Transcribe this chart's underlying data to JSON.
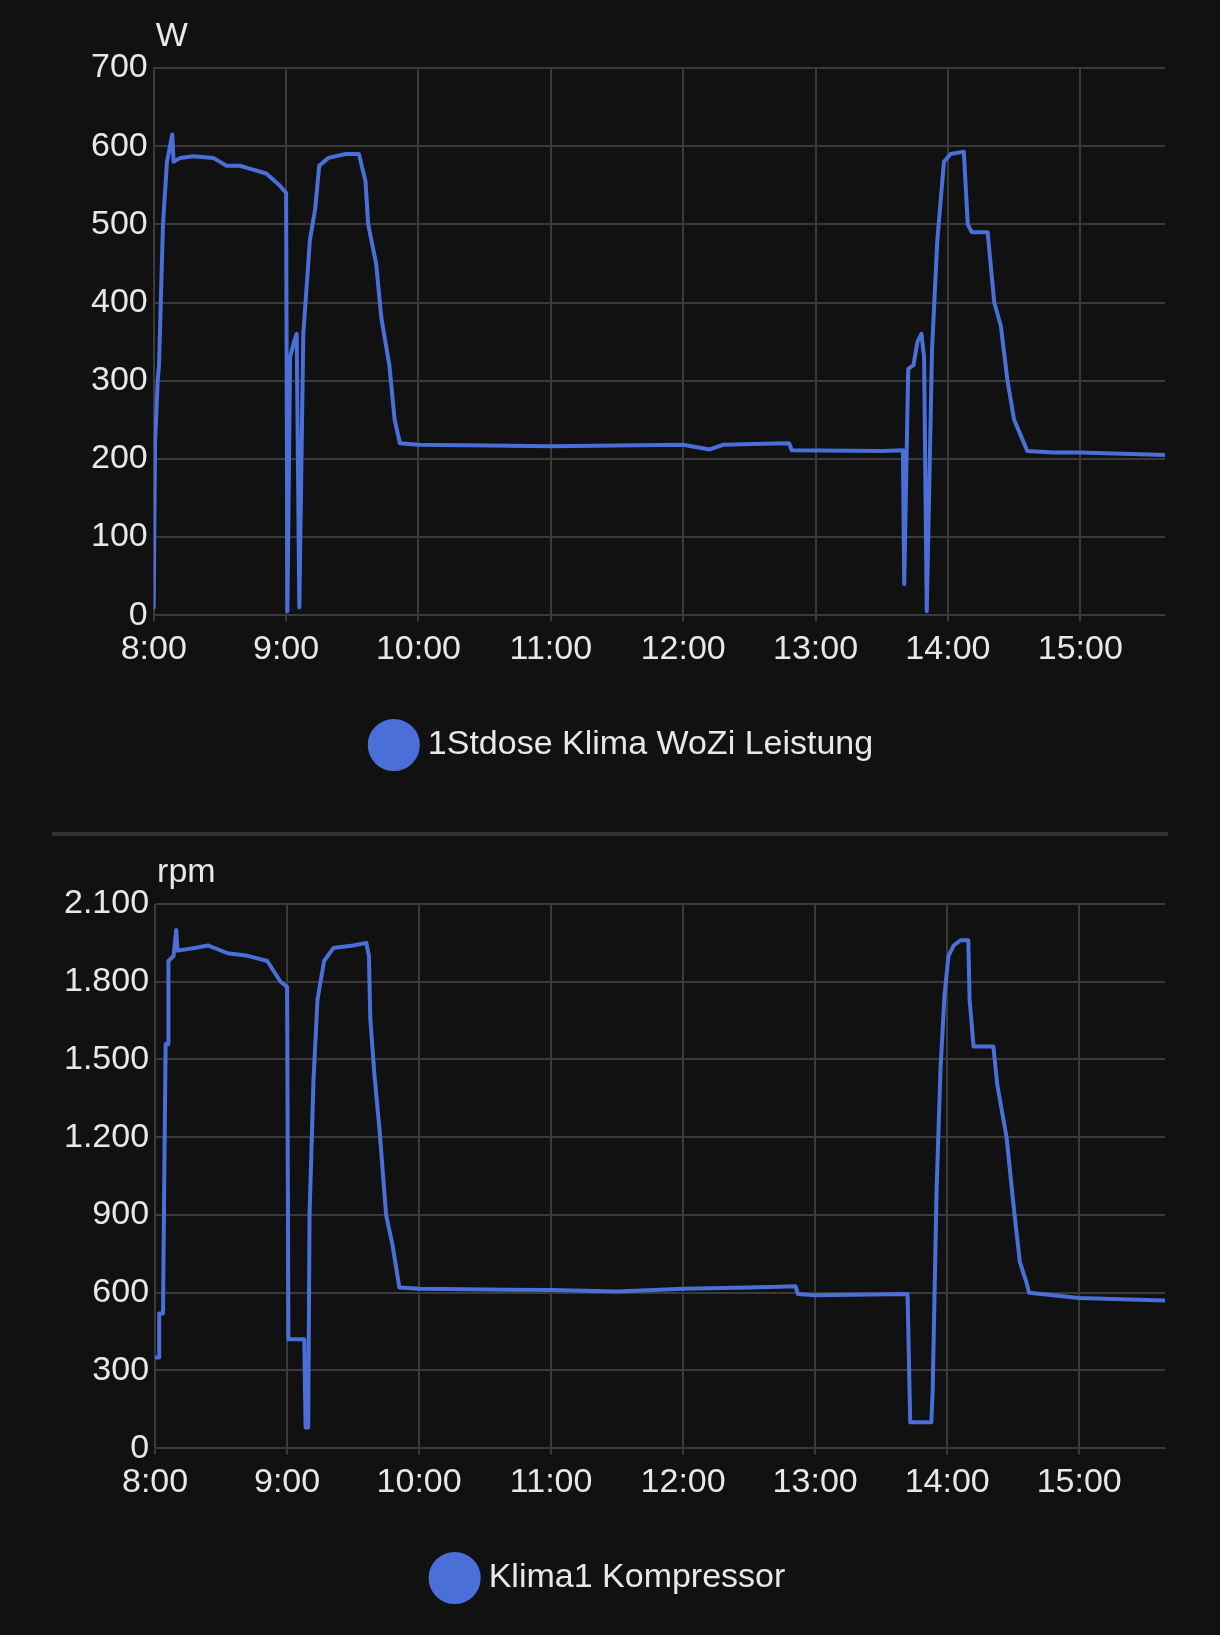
{
  "chart_data": [
    {
      "type": "line",
      "ylabel": "W",
      "x": [
        8.0,
        8.01,
        8.03,
        8.04,
        8.07,
        8.1,
        8.14,
        8.15,
        8.2,
        8.3,
        8.45,
        8.55,
        8.65,
        8.85,
        8.95,
        9.0,
        9.01,
        9.03,
        9.06,
        9.08,
        9.1,
        9.13,
        9.18,
        9.22,
        9.25,
        9.32,
        9.45,
        9.55,
        9.6,
        9.62,
        9.68,
        9.72,
        9.78,
        9.82,
        9.86,
        10.0,
        11.0,
        11.5,
        12.0,
        12.2,
        12.3,
        12.8,
        12.82,
        13.5,
        13.66,
        13.67,
        13.7,
        13.74,
        13.77,
        13.8,
        13.82,
        13.84,
        13.88,
        13.92,
        13.97,
        14.02,
        14.12,
        14.15,
        14.18,
        14.3,
        14.35,
        14.4,
        14.45,
        14.5,
        14.6,
        14.8,
        15.0,
        15.64
      ],
      "series": [
        {
          "name": "1Stdose Klima WoZi Leistung",
          "color": "#4a6fd8",
          "values": [
            10,
            220,
            300,
            320,
            500,
            580,
            615,
            580,
            585,
            587,
            585,
            575,
            575,
            565,
            550,
            540,
            5,
            330,
            350,
            360,
            10,
            360,
            480,
            520,
            575,
            585,
            590,
            590,
            555,
            500,
            450,
            380,
            320,
            250,
            220,
            218,
            216,
            217,
            218,
            212,
            218,
            220,
            211,
            210,
            211,
            40,
            315,
            320,
            350,
            360,
            330,
            5,
            340,
            480,
            580,
            590,
            593,
            500,
            490,
            490,
            400,
            370,
            300,
            250,
            210,
            208,
            208,
            205
          ]
        }
      ],
      "xlim": [
        8,
        15.64
      ],
      "xticks": [
        {
          "value": 8,
          "label": "8:00"
        },
        {
          "value": 9,
          "label": "9:00"
        },
        {
          "value": 10,
          "label": "10:00"
        },
        {
          "value": 11,
          "label": "11:00"
        },
        {
          "value": 12,
          "label": "12:00"
        },
        {
          "value": 13,
          "label": "13:00"
        },
        {
          "value": 14,
          "label": "14:00"
        },
        {
          "value": 15,
          "label": "15:00"
        }
      ],
      "ylim": [
        0,
        700
      ],
      "yticks": [
        0,
        100,
        200,
        300,
        400,
        500,
        600,
        700
      ],
      "grid": true,
      "legend": "bottom",
      "marker": "none"
    },
    {
      "type": "line",
      "ylabel": "rpm",
      "x": [
        8.0,
        8.03,
        8.031,
        8.06,
        8.07,
        8.08,
        8.1,
        8.101,
        8.14,
        8.16,
        8.17,
        8.3,
        8.4,
        8.55,
        8.7,
        8.85,
        8.95,
        9.0,
        9.01,
        9.13,
        9.14,
        9.16,
        9.17,
        9.2,
        9.23,
        9.28,
        9.35,
        9.5,
        9.6,
        9.62,
        9.63,
        9.66,
        9.7,
        9.75,
        9.8,
        9.85,
        10.0,
        11.0,
        11.5,
        12.0,
        12.5,
        12.85,
        12.87,
        13.0,
        13.7,
        13.72,
        13.88,
        13.89,
        13.92,
        13.95,
        13.98,
        14.01,
        14.05,
        14.1,
        14.16,
        14.17,
        14.2,
        14.35,
        14.38,
        14.45,
        14.5,
        14.55,
        14.6,
        14.62,
        15.0,
        15.65
      ],
      "series": [
        {
          "name": "Klima1 Kompressor",
          "color": "#4a6fd8",
          "values": [
            350,
            350,
            520,
            520,
            1060,
            1560,
            1560,
            1880,
            1900,
            2000,
            1920,
            1930,
            1940,
            1910,
            1900,
            1880,
            1800,
            1780,
            420,
            420,
            80,
            80,
            900,
            1420,
            1730,
            1880,
            1930,
            1940,
            1950,
            1900,
            1660,
            1450,
            1230,
            900,
            780,
            620,
            615,
            610,
            605,
            615,
            620,
            625,
            595,
            590,
            595,
            100,
            100,
            220,
            1000,
            1470,
            1750,
            1900,
            1940,
            1960,
            1960,
            1730,
            1550,
            1550,
            1400,
            1200,
            950,
            720,
            640,
            600,
            580,
            570
          ]
        }
      ],
      "xlim": [
        8,
        15.65
      ],
      "xticks": [
        {
          "value": 8,
          "label": "8:00"
        },
        {
          "value": 9,
          "label": "9:00"
        },
        {
          "value": 10,
          "label": "10:00"
        },
        {
          "value": 11,
          "label": "11:00"
        },
        {
          "value": 12,
          "label": "12:00"
        },
        {
          "value": 13,
          "label": "13:00"
        },
        {
          "value": 14,
          "label": "14:00"
        },
        {
          "value": 15,
          "label": "15:00"
        }
      ],
      "ylim": [
        0,
        2100
      ],
      "yticks": [
        0,
        {
          "value": 300,
          "label": "300"
        },
        {
          "value": 600,
          "label": "600"
        },
        {
          "value": 900,
          "label": "900"
        },
        {
          "value": 1200,
          "label": "1.200"
        },
        {
          "value": 1500,
          "label": "1.500"
        },
        {
          "value": 1800,
          "label": "1.800"
        },
        {
          "value": 2100,
          "label": "2.100"
        }
      ],
      "grid": true,
      "legend": "bottom",
      "marker": "none"
    }
  ]
}
